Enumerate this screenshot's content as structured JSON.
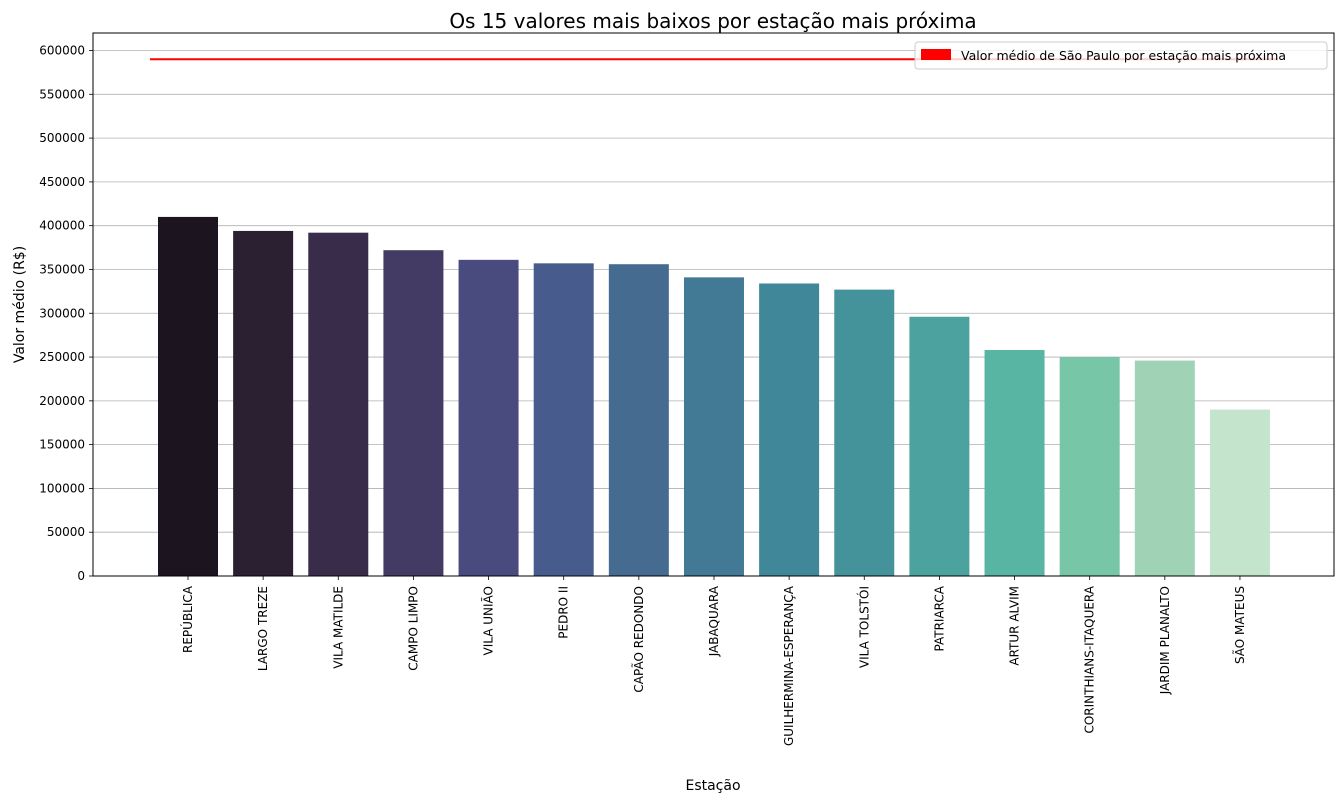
{
  "chart_data": {
    "type": "bar",
    "title": "Os 15 valores mais baixos por estação mais próxima",
    "xlabel": "Estação",
    "ylabel": "Valor médio (R$)",
    "ylim": [
      0,
      620000
    ],
    "yticks": [
      0,
      50000,
      100000,
      150000,
      200000,
      250000,
      300000,
      350000,
      400000,
      450000,
      500000,
      550000,
      600000
    ],
    "grid": "horizontal",
    "categories": [
      "REPÚBLICA",
      "LARGO TREZE",
      "VILA MATILDE",
      "CAMPO LIMPO",
      "VILA UNIÃO",
      "PEDRO II",
      "CAPÃO REDONDO",
      "JABAQUARA",
      "GUILHERMINA-ESPERANÇA",
      "VILA TOLSTÓI",
      "PATRIARCA",
      "ARTUR ALVIM",
      "CORINTHIANS-ITAQUERA",
      "JARDIM PLANALTO",
      "SÃO MATEUS"
    ],
    "values": [
      410000,
      394000,
      392000,
      372000,
      361000,
      357000,
      356000,
      341000,
      334000,
      327000,
      296000,
      258000,
      250000,
      246000,
      190000
    ],
    "bar_colors": [
      "#1c141f",
      "#2b1f32",
      "#392c4b",
      "#433b64",
      "#494b7f",
      "#475c8c",
      "#456b90",
      "#427995",
      "#3f8799",
      "#44939b",
      "#4ba29f",
      "#58b4a3",
      "#78c6a8",
      "#a0d3b6",
      "#c4e4cc"
    ],
    "reference_line": {
      "label": "Valor médio de São Paulo por estação mais próxima",
      "value": 590000,
      "color": "#ff0000"
    },
    "legend_position": "top-right"
  }
}
